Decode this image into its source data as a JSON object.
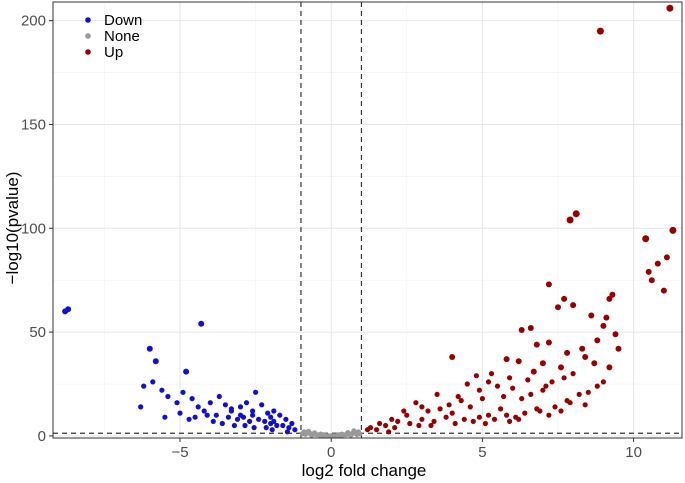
{
  "chart_data": {
    "type": "scatter",
    "title": "",
    "xlabel": "log2 fold change",
    "ylabel": "−log10(pvalue)",
    "xlim": [
      -9.2,
      11.6
    ],
    "ylim": [
      -1,
      209
    ],
    "x_ticks": [
      -5,
      0,
      5,
      10
    ],
    "x_tick_labels": [
      "−5",
      "0",
      "5",
      "10"
    ],
    "y_ticks": [
      0,
      50,
      100,
      150,
      200
    ],
    "y_tick_labels": [
      "0",
      "50",
      "100",
      "150",
      "200"
    ],
    "grid": true,
    "legend_position": "top-left",
    "threshold_lines": {
      "x": [
        -1,
        1
      ],
      "y": [
        1.3
      ]
    },
    "series": [
      {
        "name": "Down",
        "color": "#1010d0",
        "points": [
          [
            -8.8,
            60
          ],
          [
            -8.7,
            61
          ],
          [
            -4.3,
            54
          ],
          [
            -6.0,
            42
          ],
          [
            -5.8,
            36
          ],
          [
            -4.8,
            31
          ],
          [
            -6.2,
            24
          ],
          [
            -5.9,
            26
          ],
          [
            -5.6,
            22
          ],
          [
            -6.3,
            14
          ],
          [
            -5.4,
            19
          ],
          [
            -5.1,
            16
          ],
          [
            -4.9,
            21
          ],
          [
            -4.6,
            18
          ],
          [
            -4.4,
            14
          ],
          [
            -4.2,
            12
          ],
          [
            -4.0,
            16
          ],
          [
            -3.7,
            19
          ],
          [
            -3.5,
            15
          ],
          [
            -3.3,
            12
          ],
          [
            -3.0,
            14
          ],
          [
            -2.8,
            16
          ],
          [
            -2.6,
            12
          ],
          [
            -2.5,
            21
          ],
          [
            -2.3,
            15
          ],
          [
            -2.1,
            11
          ],
          [
            -1.9,
            12
          ],
          [
            -1.7,
            10
          ],
          [
            -1.5,
            8
          ],
          [
            -1.3,
            6
          ],
          [
            -3.8,
            10
          ],
          [
            -3.4,
            9
          ],
          [
            -3.1,
            8
          ],
          [
            -2.9,
            9
          ],
          [
            -2.7,
            7
          ],
          [
            -2.4,
            8
          ],
          [
            -2.2,
            7
          ],
          [
            -2.0,
            6
          ],
          [
            -1.8,
            5
          ],
          [
            -1.6,
            5
          ],
          [
            -1.4,
            4
          ],
          [
            -1.2,
            3
          ],
          [
            -4.5,
            9
          ],
          [
            -5.0,
            11
          ],
          [
            -5.5,
            9
          ],
          [
            -4.7,
            8
          ],
          [
            -3.9,
            7
          ],
          [
            -3.6,
            6
          ],
          [
            -3.2,
            5
          ],
          [
            -2.85,
            5
          ],
          [
            -2.55,
            4
          ],
          [
            -2.15,
            4
          ],
          [
            -1.95,
            3
          ],
          [
            -1.45,
            2
          ],
          [
            -4.1,
            10
          ],
          [
            -3.0,
            10
          ],
          [
            -2.0,
            9
          ],
          [
            -2.6,
            10
          ],
          [
            -1.9,
            7
          ],
          [
            -3.3,
            13
          ]
        ]
      },
      {
        "name": "None",
        "color": "#999999",
        "points": [
          [
            -0.9,
            2.0
          ],
          [
            -0.8,
            1.5
          ],
          [
            -0.7,
            1.2
          ],
          [
            -0.6,
            0.9
          ],
          [
            -0.5,
            0.7
          ],
          [
            -0.4,
            0.5
          ],
          [
            -0.3,
            0.3
          ],
          [
            -0.2,
            0.2
          ],
          [
            -0.1,
            0.1
          ],
          [
            0.0,
            0.05
          ],
          [
            0.1,
            0.1
          ],
          [
            0.2,
            0.2
          ],
          [
            0.3,
            0.3
          ],
          [
            0.4,
            0.5
          ],
          [
            0.5,
            0.7
          ],
          [
            0.6,
            0.9
          ],
          [
            0.7,
            1.2
          ],
          [
            0.8,
            1.5
          ],
          [
            0.9,
            2.0
          ],
          [
            -0.85,
            0.8
          ],
          [
            -0.55,
            1.5
          ],
          [
            -0.35,
            0.9
          ],
          [
            0.35,
            0.9
          ],
          [
            0.55,
            1.6
          ],
          [
            0.85,
            0.7
          ],
          [
            -0.65,
            0.4
          ],
          [
            0.65,
            0.4
          ],
          [
            -0.95,
            1.1
          ],
          [
            0.95,
            1.0
          ],
          [
            0.25,
            0.6
          ],
          [
            -0.25,
            0.6
          ],
          [
            0.75,
            2.4
          ],
          [
            -0.75,
            2.2
          ]
        ]
      },
      {
        "name": "Up",
        "color": "#990000",
        "points": [
          [
            11.2,
            206
          ],
          [
            8.9,
            195
          ],
          [
            8.1,
            107
          ],
          [
            7.9,
            104
          ],
          [
            11.3,
            99
          ],
          [
            10.4,
            95
          ],
          [
            11.1,
            86
          ],
          [
            10.8,
            83
          ],
          [
            10.5,
            79
          ],
          [
            10.6,
            75
          ],
          [
            11.0,
            70
          ],
          [
            7.2,
            73
          ],
          [
            9.3,
            68
          ],
          [
            9.2,
            66
          ],
          [
            7.7,
            66
          ],
          [
            8.0,
            63
          ],
          [
            7.5,
            62
          ],
          [
            8.6,
            58
          ],
          [
            9.1,
            57
          ],
          [
            9.0,
            53
          ],
          [
            6.6,
            52
          ],
          [
            6.3,
            51
          ],
          [
            9.4,
            49
          ],
          [
            8.8,
            46
          ],
          [
            7.2,
            45
          ],
          [
            6.8,
            44
          ],
          [
            8.3,
            42
          ],
          [
            7.8,
            40
          ],
          [
            8.4,
            38
          ],
          [
            5.8,
            37
          ],
          [
            6.2,
            36
          ],
          [
            7.0,
            35
          ],
          [
            7.6,
            33
          ],
          [
            6.7,
            31
          ],
          [
            8.0,
            30
          ],
          [
            5.3,
            30
          ],
          [
            4.8,
            29
          ],
          [
            5.9,
            28
          ],
          [
            6.5,
            27
          ],
          [
            7.3,
            26
          ],
          [
            4.5,
            25
          ],
          [
            5.5,
            24
          ],
          [
            6.0,
            23
          ],
          [
            7.0,
            22
          ],
          [
            8.5,
            21
          ],
          [
            3.5,
            20
          ],
          [
            4.2,
            19
          ],
          [
            5.0,
            18
          ],
          [
            6.3,
            18
          ],
          [
            7.8,
            17
          ],
          [
            2.8,
            16
          ],
          [
            3.9,
            15
          ],
          [
            4.6,
            14
          ],
          [
            5.6,
            13
          ],
          [
            6.8,
            13
          ],
          [
            3.2,
            12
          ],
          [
            4.0,
            11
          ],
          [
            5.2,
            10
          ],
          [
            6.1,
            9
          ],
          [
            2.5,
            10
          ],
          [
            2.0,
            8
          ],
          [
            1.6,
            6
          ],
          [
            1.3,
            4
          ],
          [
            1.2,
            3
          ],
          [
            1.8,
            5
          ],
          [
            2.2,
            7
          ],
          [
            2.6,
            6
          ],
          [
            3.0,
            8
          ],
          [
            3.4,
            7
          ],
          [
            3.8,
            9
          ],
          [
            4.4,
            8
          ],
          [
            4.9,
            9
          ],
          [
            5.4,
            8
          ],
          [
            5.8,
            10
          ],
          [
            6.4,
            11
          ],
          [
            6.9,
            12
          ],
          [
            7.4,
            14
          ],
          [
            7.9,
            16
          ],
          [
            8.2,
            20
          ],
          [
            2.4,
            12
          ],
          [
            3.0,
            14
          ],
          [
            3.6,
            13
          ],
          [
            4.3,
            17
          ],
          [
            4.9,
            22
          ],
          [
            5.2,
            26
          ],
          [
            5.7,
            19
          ],
          [
            6.6,
            20
          ],
          [
            7.1,
            24
          ],
          [
            7.7,
            28
          ],
          [
            8.7,
            35
          ],
          [
            9.5,
            42
          ],
          [
            9.0,
            26
          ],
          [
            2.1,
            4
          ],
          [
            2.9,
            5
          ],
          [
            3.3,
            5
          ],
          [
            1.5,
            3
          ],
          [
            1.9,
            2
          ],
          [
            4.1,
            6
          ],
          [
            4.7,
            7
          ],
          [
            5.1,
            6
          ],
          [
            5.9,
            7
          ],
          [
            6.2,
            8
          ],
          [
            7.2,
            10
          ],
          [
            7.6,
            12
          ],
          [
            8.4,
            15
          ],
          [
            8.8,
            24
          ],
          [
            9.2,
            33
          ],
          [
            4.0,
            38
          ]
        ]
      }
    ]
  }
}
